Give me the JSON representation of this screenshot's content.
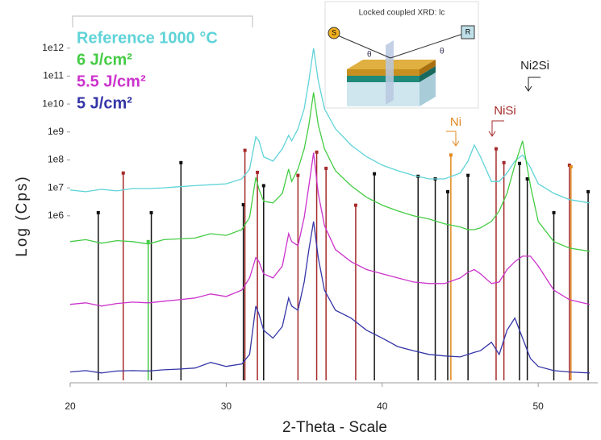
{
  "chart_data": {
    "type": "line",
    "xlabel": "2-Theta - Scale",
    "ylabel": "Log (Cps)",
    "log_y": true,
    "xlim": [
      20,
      53.3
    ],
    "ylim": [
      1.3,
      3700000000000.0
    ],
    "xticks": [
      20,
      30,
      40,
      50
    ],
    "yticks": [
      {
        "value": 1000000.0,
        "label": "1e6"
      },
      {
        "value": 10000000.0,
        "label": "1e7"
      },
      {
        "value": 100000000.0,
        "label": "1e8"
      },
      {
        "value": 1000000000.0,
        "label": "1e9"
      },
      {
        "value": 10000000000.0,
        "label": "1e10"
      },
      {
        "value": 100000000000.0,
        "label": "1e11"
      },
      {
        "value": 1000000000000.0,
        "label": "1e12"
      }
    ],
    "x": [
      20,
      21,
      22,
      23,
      24,
      25,
      26,
      27,
      28,
      29,
      30,
      31,
      31.5,
      31.9,
      32.1,
      32.4,
      33,
      33.6,
      34.0,
      34.2,
      34.6,
      35.0,
      35.3,
      35.6,
      35.9,
      36.3,
      37,
      38,
      39,
      40,
      41,
      42,
      43,
      44,
      45,
      45.5,
      45.9,
      46.3,
      47,
      47.5,
      48,
      48.5,
      49,
      49.5,
      50,
      51,
      52,
      53.3
    ],
    "series": [
      {
        "name": "Reference 1000 °C",
        "color": "#5fd3d8",
        "values": [
          8400000.0,
          7300000.0,
          8900000.0,
          7800000.0,
          9500000.0,
          9500000.0,
          10000000.0,
          11000000.0,
          12000000.0,
          13000000.0,
          14000000.0,
          21000000.0,
          47000000.0,
          670000000.0,
          480000000.0,
          130000000.0,
          91000000.0,
          250000000.0,
          760000000.0,
          480000000.0,
          1300000000.0,
          6800000000.0,
          69000000000.0,
          990000000000.0,
          69000000000.0,
          6800000000.0,
          1300000000.0,
          340000000.0,
          130000000.0,
          65000000.0,
          41000000.0,
          28000000.0,
          21000000.0,
          21000000.0,
          34000000.0,
          91000000.0,
          340000000.0,
          130000000.0,
          17000000.0,
          17000000.0,
          34000000.0,
          91000000.0,
          150000000.0,
          54000000.0,
          14000000.0,
          6400000.0,
          3800000.0,
          2900000.0
        ]
      },
      {
        "name": "6 J/cm²",
        "color": "#44cc44",
        "values": [
          120000.0,
          140000.0,
          105000.0,
          130000.0,
          120000.0,
          98000.0,
          140000.0,
          150000.0,
          160000.0,
          230000.0,
          200000.0,
          320000.0,
          880000.0,
          24000000.0,
          9000000.0,
          3300000.0,
          2900000.0,
          6400000.0,
          47000000.0,
          17000000.0,
          47000000.0,
          250000000.0,
          1800000000.0,
          26000000000.0,
          1800000000.0,
          250000000.0,
          41000000.0,
          12000000.0,
          4600000.0,
          2400000.0,
          1500000.0,
          1000000.0,
          770000.0,
          520000.0,
          400000.0,
          320000.0,
          320000.0,
          370000.0,
          630000.0,
          1500000.0,
          6400000.0,
          65000000.0,
          480000000.0,
          12000000.0,
          630000.0,
          120000.0,
          70000.0,
          54000.0
        ]
      },
      {
        "name": "5.5 J/cm²",
        "color": "#cc33cc",
        "values": [
          680,
          770,
          590,
          730,
          820,
          770,
          880,
          1000,
          1150,
          1600,
          1300,
          2200,
          6000,
          32000,
          23000,
          8400,
          6000,
          16000,
          230000,
          120000,
          86000,
          880000,
          12000000.0,
          180000000.0,
          6400000.0,
          450000,
          62000,
          23000,
          12000,
          8400,
          6000,
          4300,
          3800,
          3800,
          6000,
          9600,
          12000,
          8400,
          3800,
          4300,
          12000,
          23000,
          36000,
          36000,
          16000,
          2200,
          1000,
          680
        ]
      },
      {
        "name": "5 J/cm²",
        "color": "#3535a8",
        "values": [
          2.6,
          2.9,
          2.4,
          2.8,
          2.9,
          2.8,
          3.1,
          3.3,
          3.6,
          5.7,
          4.1,
          5.0,
          11,
          590,
          300,
          81,
          42,
          110,
          1150,
          590,
          420,
          4300,
          62000,
          630000,
          32000,
          2200,
          420,
          220,
          81,
          42,
          21,
          15,
          11,
          9.7,
          9.0,
          11,
          13,
          15,
          30,
          11,
          81,
          220,
          42,
          7.9,
          4.1,
          2.9,
          2.6,
          2.4
        ]
      }
    ],
    "reference_lines": [
      {
        "color": "#111111",
        "x": [
          21.8,
          25.2,
          27.1,
          31.1,
          32.4,
          39.5,
          42.3,
          43.4,
          44.2,
          45.5,
          48.8,
          49.3,
          51.0,
          53.2
        ],
        "values": [
          1300000.0,
          1300000.0,
          80000000.0,
          2500000.0,
          12000000.0,
          32000000.0,
          26000000.0,
          21000000.0,
          7300000.0,
          28000000.0,
          75000000.0,
          21000000.0,
          1300000.0,
          7300000.0
        ]
      },
      {
        "color": "#a52a2a",
        "x": [
          23.4,
          31.2,
          32.0,
          34.6,
          35.8,
          36.4,
          38.3,
          47.3,
          47.8,
          52.0
        ],
        "values": [
          34000000.0,
          220000000.0,
          36000000.0,
          28000000.0,
          190000000.0,
          50000000.0,
          2400000.0,
          250000000.0,
          80000000.0,
          65000000.0
        ]
      },
      {
        "color": "#e08a1e",
        "x": [
          44.4,
          52.1
        ],
        "values": [
          150000000.0,
          57000000.0
        ]
      },
      {
        "color": "#44cc44",
        "x": [
          25.0
        ],
        "values": [
          120000.0
        ]
      }
    ],
    "annotations": {
      "ni": "Ni",
      "nisi": "NiSi",
      "ni2si": "Ni2Si"
    },
    "inset": {
      "title": "Locked coupled XRD: lc",
      "source": "S",
      "detector": "R",
      "theta_left": "θ",
      "theta_right": "θ"
    }
  }
}
